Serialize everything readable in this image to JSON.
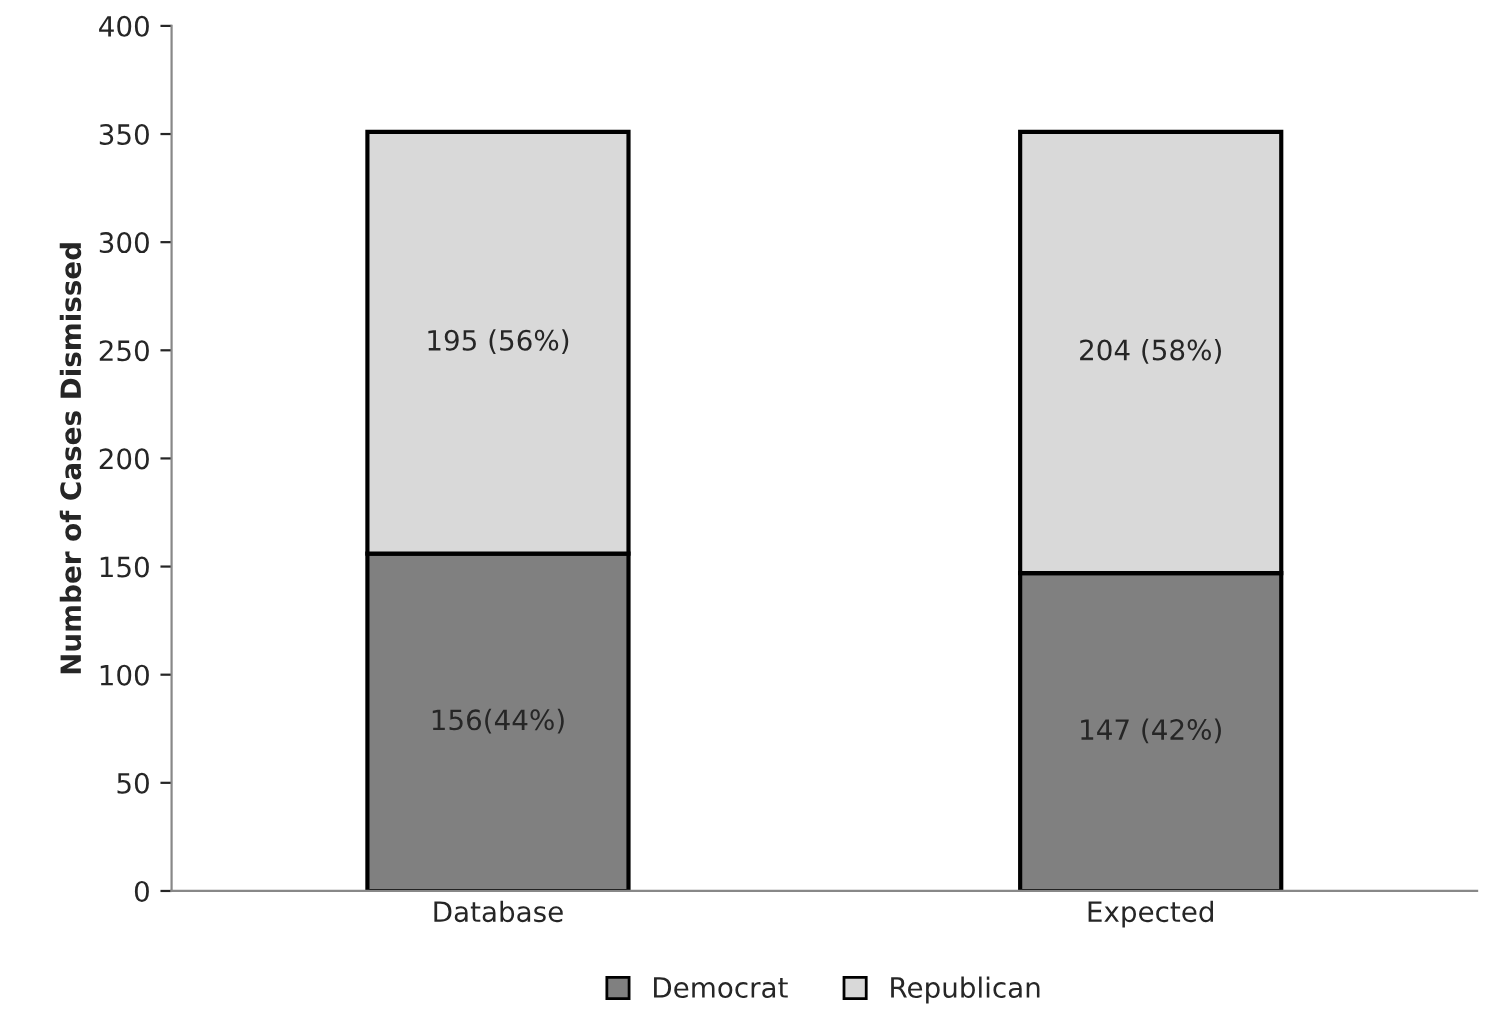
{
  "chart_data": {
    "type": "bar",
    "stacked": true,
    "ylabel": "Number of Cases Dismissed",
    "categories": [
      "Database",
      "Expected"
    ],
    "series": [
      {
        "name": "Democrat",
        "color": "#808080",
        "values": [
          156,
          147
        ],
        "value_labels": [
          "156(44%)",
          "147 (42%)"
        ]
      },
      {
        "name": "Republican",
        "color": "#d9d9d9",
        "values": [
          195,
          204
        ],
        "value_labels": [
          "195 (56%)",
          "204 (58%)"
        ]
      }
    ],
    "ylim": [
      0,
      400
    ],
    "yticks": [
      0,
      50,
      100,
      150,
      200,
      250,
      300,
      350,
      400
    ],
    "grid": false,
    "legend": "bottom"
  }
}
